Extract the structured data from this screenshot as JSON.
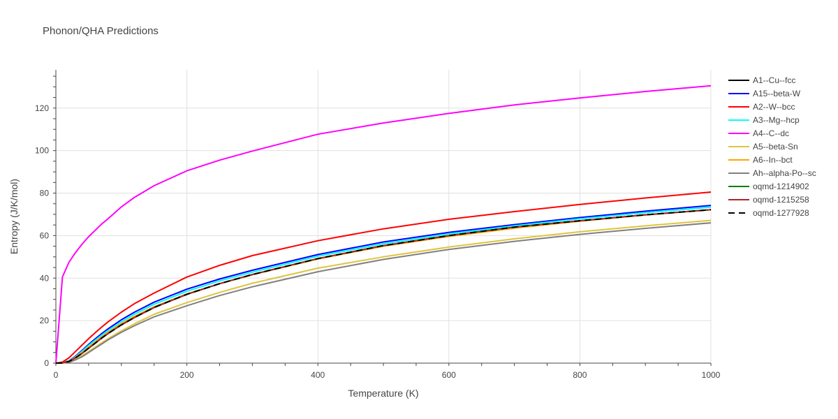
{
  "chart_data": {
    "type": "line",
    "title": "Phonon/QHA Predictions",
    "xlabel": "Temperature (K)",
    "ylabel": "Entropy (J/K/mol)",
    "xlim": [
      0,
      1000
    ],
    "ylim": [
      0,
      138
    ],
    "xticks": [
      0,
      200,
      400,
      600,
      800,
      1000
    ],
    "yticks": [
      0,
      20,
      40,
      60,
      80,
      100,
      120
    ],
    "grid": true,
    "legend_position": "right",
    "x": [
      0,
      10,
      20,
      30,
      40,
      50,
      60,
      70,
      80,
      100,
      120,
      150,
      200,
      250,
      300,
      400,
      500,
      600,
      700,
      800,
      900,
      1000
    ],
    "series": [
      {
        "name": "A1--Cu--fcc",
        "color": "#000000",
        "dash": "solid",
        "values": [
          0,
          0.1,
          0.8,
          2.5,
          4.6,
          7.0,
          9.4,
          11.8,
          14.0,
          18.0,
          21.5,
          26.2,
          32.4,
          37.4,
          41.7,
          49.2,
          55.3,
          60.0,
          64.0,
          67.0,
          69.8,
          72.2
        ]
      },
      {
        "name": "A15--beta-W",
        "color": "#0000ff",
        "dash": "solid",
        "values": [
          0,
          0.15,
          1.1,
          3.3,
          6.0,
          8.8,
          11.4,
          13.9,
          16.2,
          20.4,
          24.0,
          28.7,
          34.8,
          39.6,
          43.7,
          51.1,
          57.0,
          61.5,
          65.2,
          68.5,
          71.5,
          74.2
        ]
      },
      {
        "name": "A2--W--bcc",
        "color": "#ff0000",
        "dash": "solid",
        "values": [
          0,
          0.5,
          2.5,
          5.5,
          8.5,
          11.5,
          14.3,
          17.0,
          19.5,
          24.0,
          28.0,
          33.0,
          40.5,
          46.0,
          50.6,
          57.6,
          63.2,
          67.7,
          71.3,
          74.7,
          77.7,
          80.5
        ]
      },
      {
        "name": "A3--Mg--hcp",
        "color": "#00ffff",
        "dash": "solid",
        "values": [
          0,
          0.12,
          1.0,
          3.0,
          5.6,
          8.3,
          10.8,
          13.2,
          15.4,
          19.5,
          23.0,
          27.7,
          33.8,
          38.7,
          42.8,
          50.3,
          56.2,
          60.8,
          64.6,
          67.9,
          70.8,
          73.4
        ]
      },
      {
        "name": "A4--C--dc",
        "color": "#ff00ff",
        "dash": "solid",
        "values": [
          0,
          40.5,
          47.5,
          52.0,
          56.0,
          59.5,
          62.5,
          65.5,
          68.0,
          73.5,
          78.0,
          83.5,
          90.5,
          95.5,
          99.8,
          107.7,
          113.0,
          117.5,
          121.5,
          124.8,
          127.8,
          130.5
        ]
      },
      {
        "name": "A5--beta-Sn",
        "color": "#dfc43c",
        "dash": "solid",
        "values": [
          0,
          0.05,
          0.5,
          1.8,
          3.5,
          5.5,
          7.5,
          9.6,
          11.5,
          15.2,
          18.5,
          23.0,
          28.5,
          33.3,
          37.6,
          44.7,
          50.0,
          54.6,
          58.5,
          61.8,
          64.6,
          67.2
        ]
      },
      {
        "name": "A6--In--bct",
        "color": "#ffa500",
        "dash": "solid",
        "values": [
          0,
          0.1,
          0.9,
          2.7,
          5.0,
          7.5,
          10.0,
          12.4,
          14.6,
          18.6,
          22.0,
          26.5,
          32.6,
          37.4,
          41.6,
          49.0,
          55.0,
          59.6,
          63.5,
          66.8,
          69.7,
          72.2
        ]
      },
      {
        "name": "Ah--alpha-Po--sc",
        "color": "#808080",
        "dash": "solid",
        "values": [
          0,
          0.05,
          0.4,
          1.5,
          3.0,
          5.0,
          7.0,
          9.0,
          11.0,
          14.5,
          17.6,
          21.8,
          27.0,
          31.8,
          35.9,
          43.0,
          48.8,
          53.5,
          57.3,
          60.6,
          63.4,
          66.0
        ]
      },
      {
        "name": "oqmd-1214902",
        "color": "#008000",
        "dash": "solid",
        "values": [
          0,
          0.1,
          0.8,
          2.5,
          4.6,
          7.0,
          9.4,
          11.8,
          14.0,
          18.0,
          21.5,
          26.2,
          32.4,
          37.4,
          41.7,
          49.2,
          55.3,
          60.0,
          64.0,
          67.0,
          69.8,
          72.2
        ]
      },
      {
        "name": "oqmd-1215258",
        "color": "#b22222",
        "dash": "solid",
        "values": [
          0,
          0.1,
          0.8,
          2.5,
          4.6,
          7.0,
          9.4,
          11.8,
          14.0,
          18.0,
          21.5,
          26.2,
          32.4,
          37.4,
          41.7,
          49.2,
          55.3,
          60.0,
          64.0,
          67.0,
          69.8,
          72.2
        ]
      },
      {
        "name": "oqmd-1277928",
        "color": "#000000",
        "dash": "dash",
        "values": [
          0,
          0.1,
          0.8,
          2.5,
          4.6,
          7.0,
          9.4,
          11.8,
          14.0,
          18.0,
          21.5,
          26.2,
          32.4,
          37.4,
          41.7,
          49.2,
          55.3,
          60.0,
          64.0,
          67.0,
          69.8,
          72.2
        ]
      }
    ]
  }
}
